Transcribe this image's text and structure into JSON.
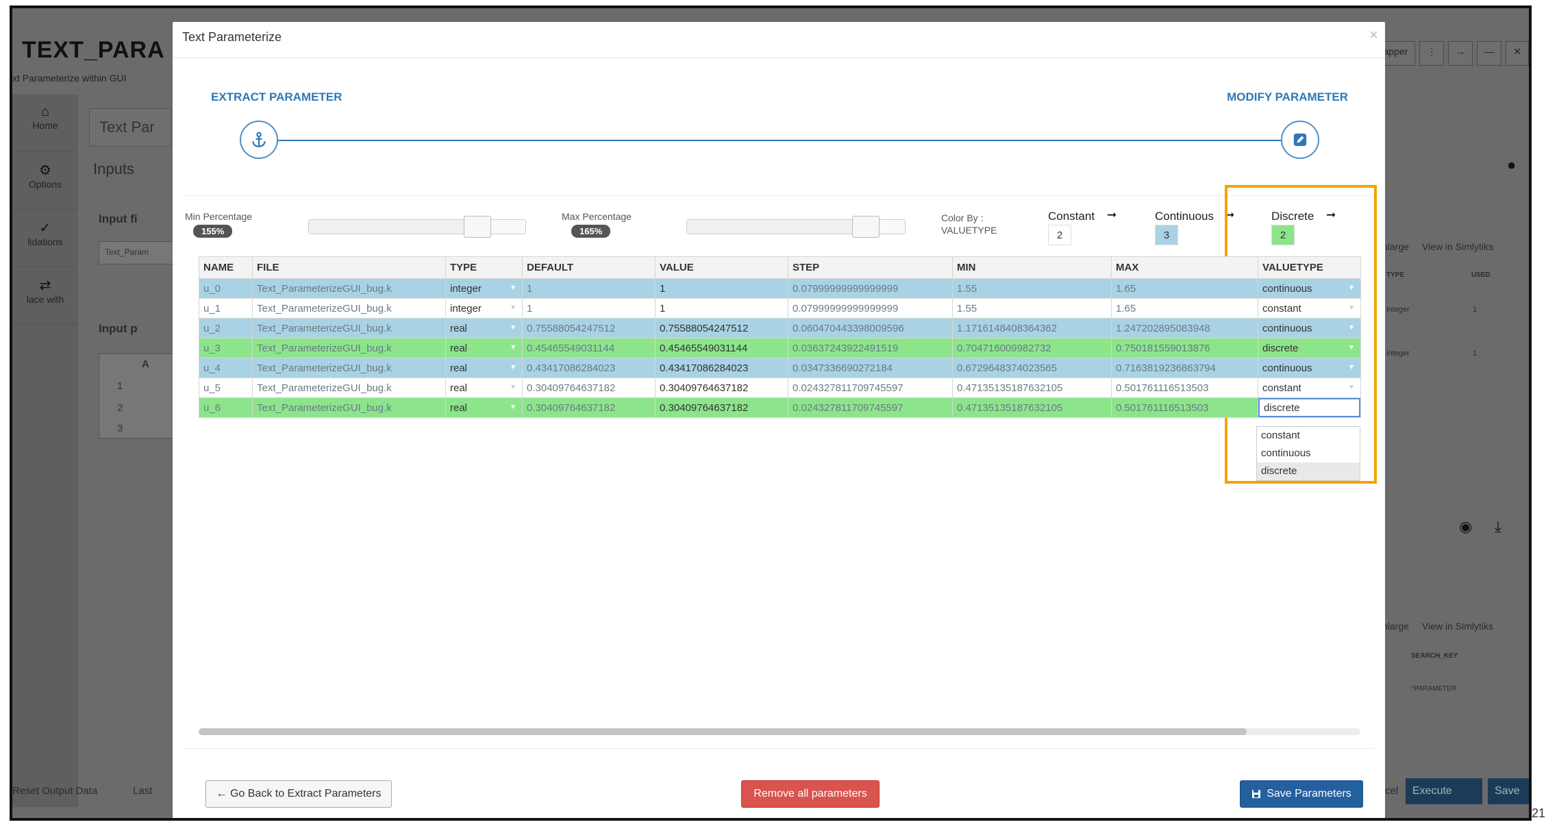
{
  "background": {
    "app_title": "TEXT_PARA",
    "app_subtitle": "xt Parameterize within GUI",
    "sidebar": [
      {
        "label": "Home"
      },
      {
        "label": "Options"
      },
      {
        "label": "lidations"
      },
      {
        "label": "lace with"
      }
    ],
    "tab_label": "Text Par",
    "inputs_label": "Inputs",
    "input_file_label": "Input fi",
    "input_file_value": "Text_Param",
    "input_table_label": "Input p",
    "grid_col": "A",
    "grid_rows": [
      "1",
      "2",
      "3"
    ],
    "right_top_buttons": [
      "apper",
      "⋮",
      "→",
      "—",
      "✕"
    ],
    "enlarge_label": "nlarge",
    "view_label": "View in Simlytiks",
    "mini_table_headers": [
      "TYPE",
      "USED"
    ],
    "mini_rows": [
      {
        "type": "integer",
        "used": "1"
      },
      {
        "type": "integer",
        "used": "1"
      }
    ],
    "search_key_label": "SEARCH_KEY",
    "param_label": "^PARAMETER",
    "reset_label": "Reset Output Data",
    "last_label": "Last",
    "cancel_label": "cel",
    "execute_label": "Execute",
    "save_label": "Save"
  },
  "frame_number": "21",
  "modal": {
    "title": "Text Parameterize",
    "close": "×",
    "steps": {
      "extract": "EXTRACT PARAMETER",
      "modify": "MODIFY PARAMETER"
    },
    "min_percentage": {
      "label": "Min Percentage",
      "value": "155%",
      "level": 0.78
    },
    "max_percentage": {
      "label": "Max Percentage",
      "value": "165%",
      "level": 0.82
    },
    "color_by": {
      "label": "Color By :",
      "value": "VALUETYPE"
    },
    "legend": [
      {
        "name": "Constant",
        "count": "2",
        "color": "#ffffff"
      },
      {
        "name": "Continuous",
        "count": "3",
        "color": "#a9d3e4"
      },
      {
        "name": "Discrete",
        "count": "2",
        "color": "#8ce58b"
      }
    ],
    "table": {
      "headers": [
        "NAME",
        "FILE",
        "TYPE",
        "DEFAULT",
        "VALUE",
        "STEP",
        "MIN",
        "MAX",
        "VALUETYPE"
      ],
      "rows": [
        {
          "name": "u_0",
          "file": "Text_ParameterizeGUI_bug.k",
          "type": "integer",
          "default": "1",
          "value": "1",
          "step": "0.07999999999999999",
          "min": "1.55",
          "max": "1.65",
          "valuetype": "continuous"
        },
        {
          "name": "u_1",
          "file": "Text_ParameterizeGUI_bug.k",
          "type": "integer",
          "default": "1",
          "value": "1",
          "step": "0.07999999999999999",
          "min": "1.55",
          "max": "1.65",
          "valuetype": "constant"
        },
        {
          "name": "u_2",
          "file": "Text_ParameterizeGUI_bug.k",
          "type": "real",
          "default": "0.75588054247512",
          "value": "0.75588054247512",
          "step": "0.060470443398009596",
          "min": "1.1716148408364362",
          "max": "1.247202895083948",
          "valuetype": "continuous"
        },
        {
          "name": "u_3",
          "file": "Text_ParameterizeGUI_bug.k",
          "type": "real",
          "default": "0.45465549031144",
          "value": "0.45465549031144",
          "step": "0.03637243922491519",
          "min": "0.704716009982732",
          "max": "0.750181559013876",
          "valuetype": "discrete"
        },
        {
          "name": "u_4",
          "file": "Text_ParameterizeGUI_bug.k",
          "type": "real",
          "default": "0.43417086284023",
          "value": "0.43417086284023",
          "step": "0.0347336690272184",
          "min": "0.6729648374023565",
          "max": "0.7163819236863794",
          "valuetype": "continuous"
        },
        {
          "name": "u_5",
          "file": "Text_ParameterizeGUI_bug.k",
          "type": "real",
          "default": "0.30409764637182",
          "value": "0.30409764637182",
          "step": "0.024327811709745597",
          "min": "0.47135135187632105",
          "max": "0.501761116513503",
          "valuetype": "constant"
        },
        {
          "name": "u_6",
          "file": "Text_ParameterizeGUI_bug.k",
          "type": "real",
          "default": "0.30409764637182",
          "value": "0.30409764637182",
          "step": "0.024327811709745597",
          "min": "0.47135135187632105",
          "max": "0.501761116513503",
          "valuetype": "discrete"
        }
      ]
    },
    "dropdown_options": [
      "constant",
      "continuous",
      "discrete"
    ],
    "dropdown_selected": "discrete",
    "buttons": {
      "back": "← Go Back to Extract Parameters",
      "remove": "Remove all parameters",
      "save": "Save Parameters"
    },
    "highlight_color": "#f5a300"
  }
}
